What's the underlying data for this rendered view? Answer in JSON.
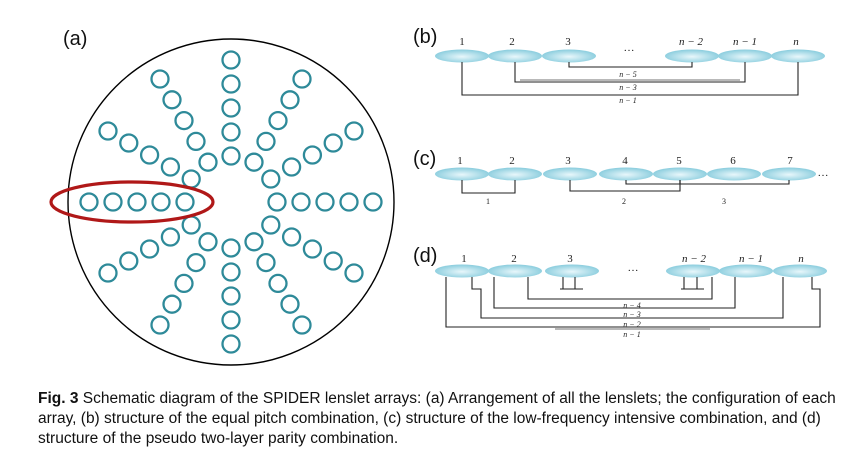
{
  "panels": {
    "a": {
      "label": "(a)"
    },
    "b": {
      "label": "(b)",
      "lenses": [
        "1",
        "2",
        "3",
        "…",
        "n − 2",
        "n − 1",
        "n"
      ],
      "pairs": [
        "n − 5",
        "n − 3",
        "n − 1"
      ]
    },
    "c": {
      "label": "(c)",
      "lenses": [
        "1",
        "2",
        "3",
        "4",
        "5",
        "6",
        "7",
        "…"
      ],
      "pairs": [
        "1",
        "2",
        "3"
      ]
    },
    "d": {
      "label": "(d)",
      "lenses": [
        "1",
        "2",
        "3",
        "…",
        "n − 2",
        "n − 1",
        "n"
      ],
      "pairs": [
        "n − 4",
        "n − 3",
        "n − 2",
        "n − 1"
      ]
    }
  },
  "caption": {
    "prefix": "Fig. 3",
    "text": " Schematic diagram of the SPIDER lenslet arrays: (a) Arrangement of all the lenslets; the configuration of each array, (b) structure of the equal pitch combination, (c) structure of the low-frequency intensive combination, and (d) structure of the pseudo two-layer parity combination."
  },
  "colors": {
    "lenslet": "#2e8a99",
    "highlight": "#b01818",
    "lens_fill_dark": "#88ccdd",
    "lens_fill_light": "#e8f7fb"
  }
}
